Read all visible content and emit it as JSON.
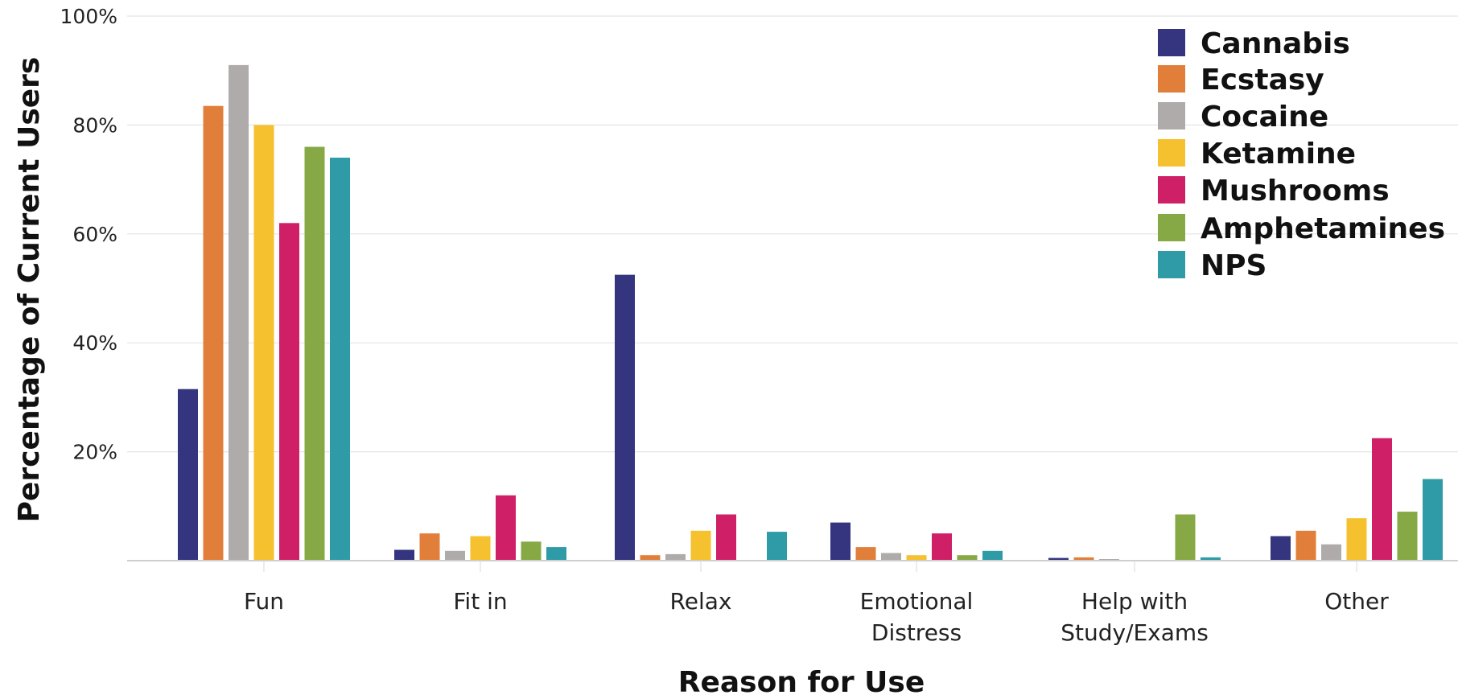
{
  "chart_data": {
    "type": "bar",
    "xlabel": "Reason for Use",
    "ylabel": "Percentage of Current Users",
    "ylim": [
      0,
      100
    ],
    "yticks": [
      "20%",
      "40%",
      "60%",
      "80%",
      "100%"
    ],
    "ytick_values": [
      20,
      40,
      60,
      80,
      100
    ],
    "grid": true,
    "legend_position": "top-right",
    "categories": [
      [
        "Fun"
      ],
      [
        "Fit in"
      ],
      [
        "Relax"
      ],
      [
        "Emotional",
        "Distress"
      ],
      [
        "Help with",
        "Study/Exams"
      ],
      [
        "Other"
      ]
    ],
    "series": [
      {
        "name": "Cannabis",
        "color": "#34347f",
        "values": [
          31.5,
          2.0,
          52.5,
          7.0,
          0.5,
          4.5
        ]
      },
      {
        "name": "Ecstasy",
        "color": "#e17f3a",
        "values": [
          83.5,
          5.0,
          1.0,
          2.5,
          0.6,
          5.5
        ]
      },
      {
        "name": "Cocaine",
        "color": "#b0abab",
        "values": [
          91.0,
          1.8,
          1.2,
          1.4,
          0.3,
          3.0
        ]
      },
      {
        "name": "Ketamine",
        "color": "#f5c12f",
        "values": [
          80.0,
          4.5,
          5.5,
          1.0,
          0.0,
          7.8
        ]
      },
      {
        "name": "Mushrooms",
        "color": "#cf2067",
        "values": [
          62.0,
          12.0,
          8.5,
          5.0,
          0.0,
          22.5
        ]
      },
      {
        "name": "Amphetamines",
        "color": "#86a945",
        "values": [
          76.0,
          3.5,
          0.0,
          1.0,
          8.5,
          9.0
        ]
      },
      {
        "name": "NPS",
        "color": "#2e9ba7",
        "values": [
          74.0,
          2.5,
          5.3,
          1.8,
          0.6,
          15.0
        ]
      }
    ]
  }
}
